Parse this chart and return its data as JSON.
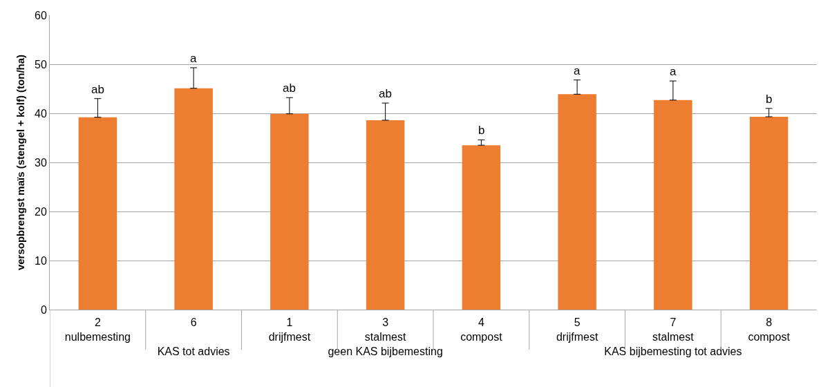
{
  "chart_data": {
    "type": "bar",
    "ylabel": "versopbrengst maïs (stengel + kolf) (ton/ha)",
    "categories": [
      "2\nnulbemesting",
      "6\n\nKAS tot advies",
      "1\ndrijfmest",
      "3\nstalmest\ngeen KAS bijbemesting",
      "4\ncompost",
      "5\ndrijfmest",
      "7\nstalmest\nKAS bijbemesting tot advies",
      "8\ncompost"
    ],
    "values": [
      39.2,
      45.1,
      39.9,
      38.6,
      33.5,
      43.9,
      42.7,
      39.3
    ],
    "errors": [
      [
        39.2,
        43.0
      ],
      [
        45.1,
        49.3
      ],
      [
        39.9,
        43.2
      ],
      [
        38.6,
        42.1
      ],
      [
        33.5,
        34.6
      ],
      [
        43.9,
        46.8
      ],
      [
        42.7,
        46.6
      ],
      [
        39.3,
        41.0
      ]
    ],
    "color": "#ed7d31",
    "ylim": [
      0,
      60
    ],
    "yticks": [
      0,
      10,
      20,
      30,
      40,
      50,
      60
    ],
    "grid": "y",
    "annotations": [
      {
        "text": "ab",
        "x": "2\nnulbemesting",
        "y": 43.0
      },
      {
        "text": "a",
        "x": "6\n\nKAS tot advies",
        "y": 49.3
      },
      {
        "text": "ab",
        "x": "1\ndrijfmest",
        "y": 43.2
      },
      {
        "text": "ab",
        "x": "3\nstalmest\ngeen KAS bijbemesting",
        "y": 42.1
      },
      {
        "text": "b",
        "x": "4\ncompost",
        "y": 34.6
      },
      {
        "text": "a",
        "x": "5\ndrijfmest",
        "y": 46.8
      },
      {
        "text": "a",
        "x": "7\nstalmest\nKAS bijbemesting tot advies",
        "y": 46.6
      },
      {
        "text": "b",
        "x": "8\ncompost",
        "y": 41.0
      }
    ]
  }
}
